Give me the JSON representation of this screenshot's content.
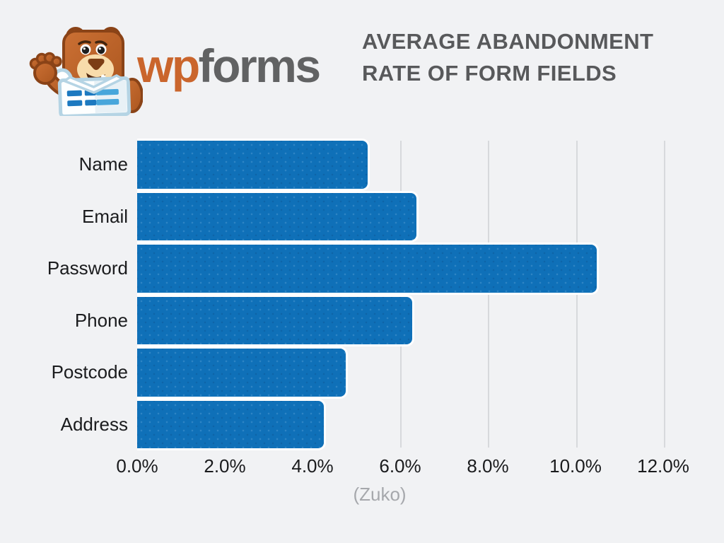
{
  "window": {
    "background": "#f1f2f4"
  },
  "brand": {
    "mascot_icon": "wpforms-bear-mascot-icon",
    "wordmark_wp": "wp",
    "wordmark_forms": "forms",
    "wp_color": "#ca652c",
    "forms_color": "#616263"
  },
  "title": {
    "line1": "AVERAGE ABANDONMENT",
    "line2": "RATE OF FORM FIELDS",
    "color": "#58595b"
  },
  "chart_data": {
    "type": "bar",
    "orientation": "horizontal",
    "title": "AVERAGE ABANDONMENT RATE OF FORM FIELDS",
    "categories": [
      "Name",
      "Email",
      "Password",
      "Phone",
      "Postcode",
      "Address"
    ],
    "values": [
      5.3,
      6.4,
      10.5,
      6.3,
      4.8,
      4.3
    ],
    "value_unit": "%",
    "xlim": [
      0,
      12
    ],
    "x_ticks": [
      {
        "value": 0,
        "label": "0.0%"
      },
      {
        "value": 2,
        "label": "2.0%"
      },
      {
        "value": 4,
        "label": "4.0%"
      },
      {
        "value": 6,
        "label": "6.0%"
      },
      {
        "value": 8,
        "label": "8.0%"
      },
      {
        "value": 10,
        "label": "10.0%"
      },
      {
        "value": 12,
        "label": "12.0%"
      }
    ],
    "grid": true,
    "legend": false,
    "bar_color": "#0f70b8",
    "gridline_color": "#d7d9dc",
    "source": "(Zuko)"
  }
}
